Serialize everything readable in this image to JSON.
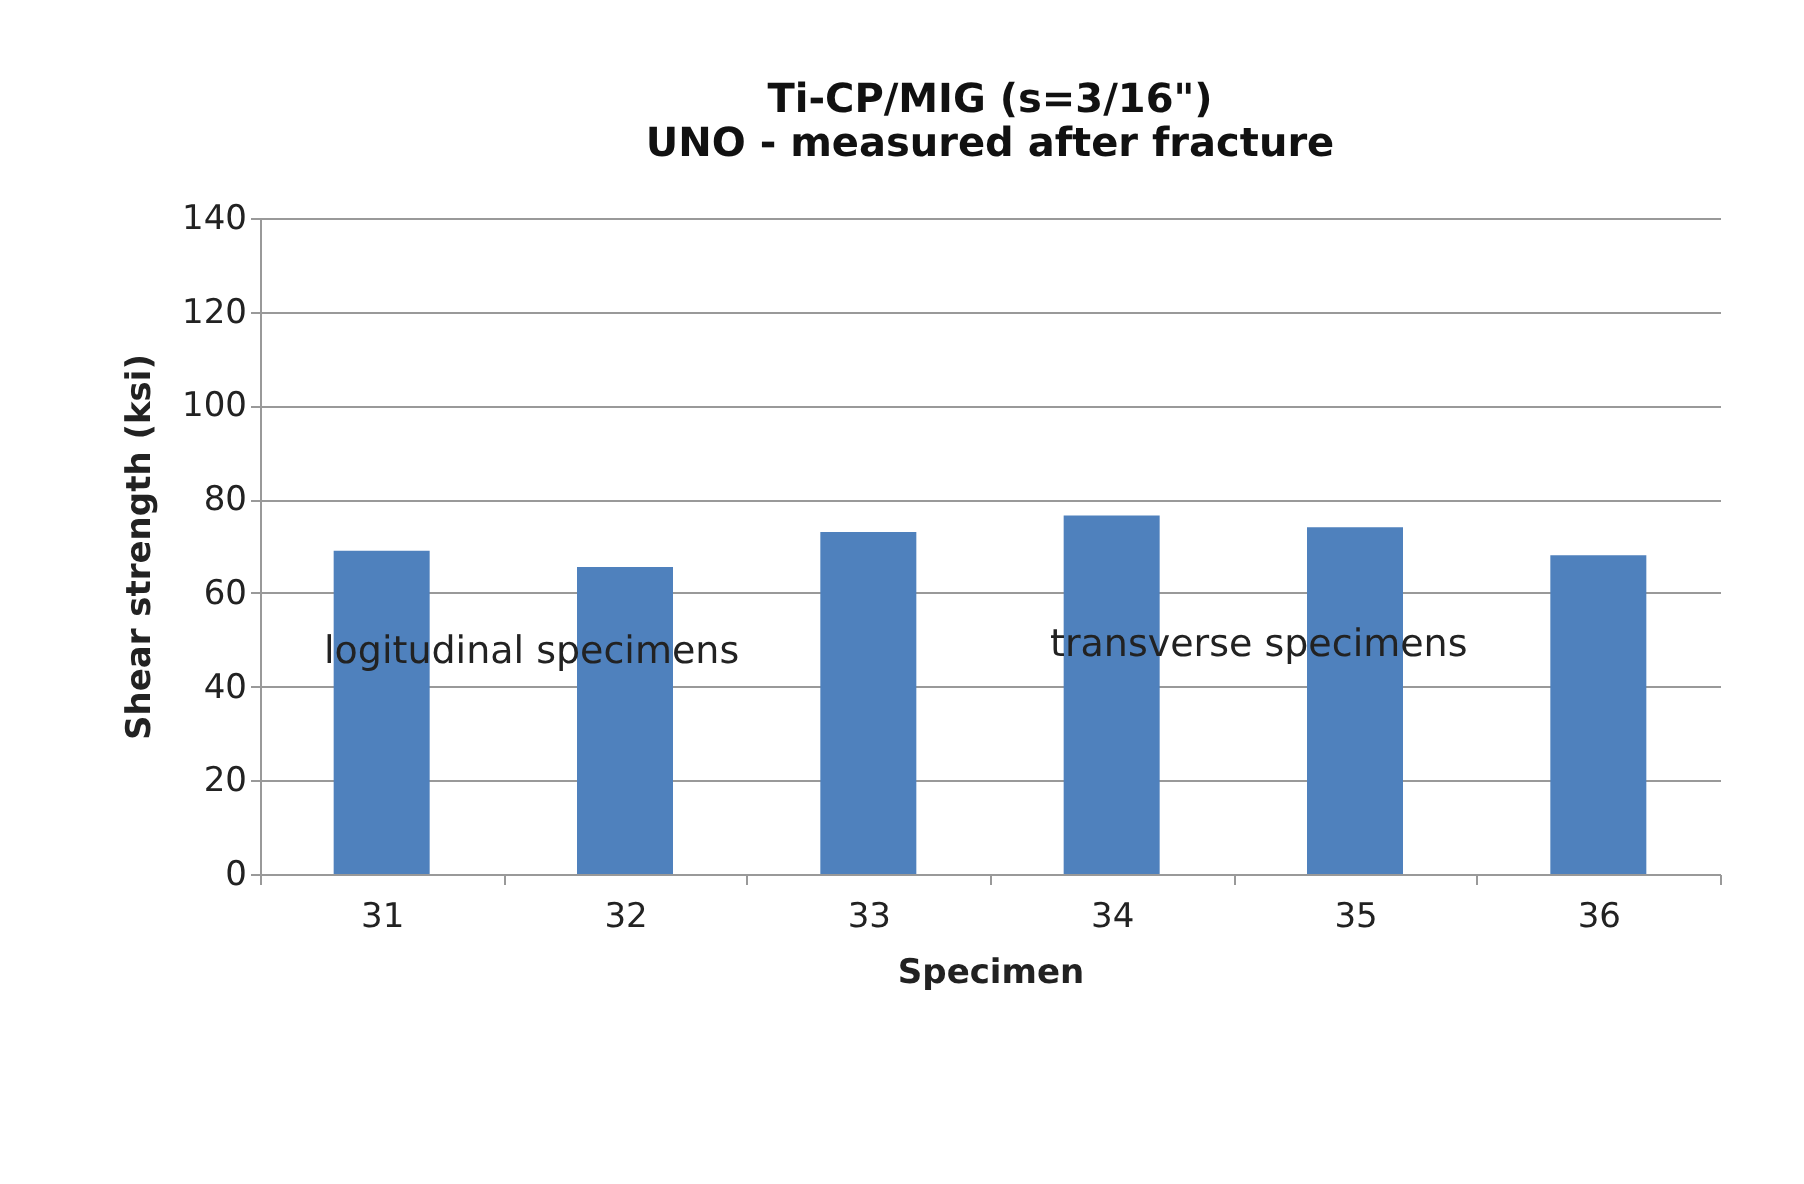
{
  "chart_data": {
    "type": "bar",
    "title": [
      "Ti-CP/MIG (s=3/16\")",
      "UNO - measured after fracture"
    ],
    "xlabel": "Specimen",
    "ylabel": "Shear strength (ksi)",
    "categories": [
      "31",
      "32",
      "33",
      "34",
      "35",
      "36"
    ],
    "values": [
      69,
      65.5,
      73,
      76.5,
      74,
      68
    ],
    "color": "#4f81bd",
    "ylim": [
      0,
      140
    ],
    "yticks": [
      0,
      20,
      40,
      60,
      80,
      100,
      120,
      140
    ],
    "grid": "y",
    "annotations": [
      "logitudinal specimens",
      "transverse specimens"
    ]
  }
}
